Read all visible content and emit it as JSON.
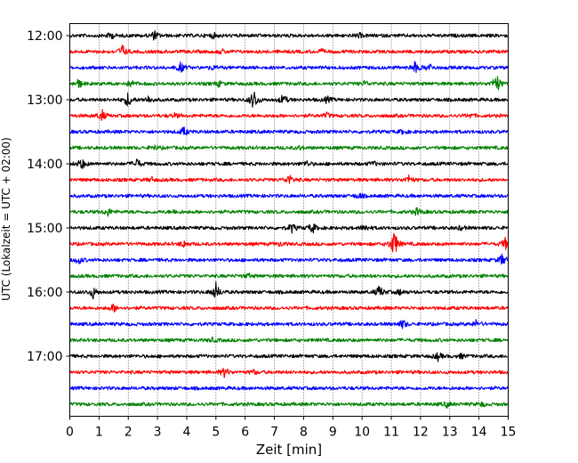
{
  "chart_data": {
    "type": "line",
    "title": "",
    "xlabel": "Zeit  [min]",
    "ylabel": "UTC (Lokalzeit = UTC + 02:00)",
    "xlim": [
      0,
      15
    ],
    "x_ticks": [
      "0",
      "1",
      "2",
      "3",
      "4",
      "5",
      "6",
      "7",
      "8",
      "9",
      "10",
      "11",
      "12",
      "13",
      "14",
      "15"
    ],
    "y_ticks": [
      "12:00",
      "13:00",
      "14:00",
      "15:00",
      "16:00",
      "17:00"
    ],
    "grid": "vertical dotted",
    "trace_interval_min": 15,
    "colors": [
      "#000000",
      "#ff0000",
      "#0000ff",
      "#008000"
    ],
    "traces": [
      {
        "start": "12:00",
        "color": "#000000",
        "events": [
          [
            1.4,
            0.5
          ],
          [
            2.9,
            0.7
          ],
          [
            4.9,
            0.4
          ],
          [
            9.9,
            0.3
          ]
        ]
      },
      {
        "start": "12:15",
        "color": "#ff0000",
        "events": [
          [
            1.8,
            1.0
          ],
          [
            5.2,
            0.3
          ],
          [
            8.6,
            0.3
          ]
        ]
      },
      {
        "start": "12:30",
        "color": "#0000ff",
        "events": [
          [
            3.8,
            0.8
          ],
          [
            4.9,
            0.3
          ],
          [
            11.8,
            0.9
          ],
          [
            12.3,
            0.6
          ]
        ]
      },
      {
        "start": "12:45",
        "color": "#008000",
        "events": [
          [
            0.3,
            0.7
          ],
          [
            2.1,
            0.5
          ],
          [
            5.1,
            0.4
          ],
          [
            10.1,
            0.4
          ],
          [
            14.6,
            1.6
          ]
        ]
      },
      {
        "start": "13:00",
        "color": "#000000",
        "events": [
          [
            2.0,
            1.2
          ],
          [
            2.7,
            0.6
          ],
          [
            6.3,
            1.7
          ],
          [
            7.3,
            0.8
          ],
          [
            8.8,
            0.5
          ]
        ]
      },
      {
        "start": "13:15",
        "color": "#ff0000",
        "events": [
          [
            1.1,
            0.9
          ],
          [
            3.6,
            0.3
          ],
          [
            8.8,
            0.4
          ],
          [
            13.7,
            0.3
          ]
        ]
      },
      {
        "start": "13:30",
        "color": "#0000ff",
        "events": [
          [
            3.9,
            0.7
          ],
          [
            11.4,
            0.3
          ]
        ]
      },
      {
        "start": "13:45",
        "color": "#008000",
        "events": [
          [
            2.9,
            0.3
          ],
          [
            7.9,
            0.3
          ]
        ]
      },
      {
        "start": "14:00",
        "color": "#000000",
        "events": [
          [
            0.4,
            0.9
          ],
          [
            2.3,
            0.8
          ],
          [
            8.1,
            0.4
          ],
          [
            10.4,
            0.3
          ]
        ]
      },
      {
        "start": "14:15",
        "color": "#ff0000",
        "events": [
          [
            2.8,
            0.3
          ],
          [
            7.5,
            0.8
          ],
          [
            11.6,
            0.6
          ]
        ]
      },
      {
        "start": "14:30",
        "color": "#0000ff",
        "events": [
          [
            9.9,
            0.4
          ]
        ]
      },
      {
        "start": "14:45",
        "color": "#008000",
        "events": [
          [
            1.3,
            0.6
          ],
          [
            3.6,
            0.3
          ],
          [
            11.9,
            0.6
          ]
        ]
      },
      {
        "start": "15:00",
        "color": "#000000",
        "events": [
          [
            7.6,
            0.7
          ],
          [
            8.3,
            0.8
          ],
          [
            10.1,
            0.5
          ],
          [
            13.4,
            0.3
          ]
        ]
      },
      {
        "start": "15:15",
        "color": "#ff0000",
        "events": [
          [
            3.9,
            0.5
          ],
          [
            7.2,
            0.3
          ],
          [
            11.1,
            2.2
          ],
          [
            14.9,
            0.9
          ]
        ]
      },
      {
        "start": "15:30",
        "color": "#0000ff",
        "events": [
          [
            0.3,
            0.6
          ],
          [
            14.8,
            0.9
          ]
        ]
      },
      {
        "start": "15:45",
        "color": "#008000",
        "events": [
          [
            6.1,
            0.3
          ]
        ]
      },
      {
        "start": "16:00",
        "color": "#000000",
        "events": [
          [
            0.8,
            0.9
          ],
          [
            5.0,
            1.4
          ],
          [
            10.6,
            1.0
          ],
          [
            11.3,
            0.4
          ]
        ]
      },
      {
        "start": "16:15",
        "color": "#ff0000",
        "events": [
          [
            1.5,
            0.6
          ]
        ]
      },
      {
        "start": "16:30",
        "color": "#0000ff",
        "events": [
          [
            11.4,
            0.7
          ],
          [
            13.9,
            0.5
          ]
        ]
      },
      {
        "start": "16:45",
        "color": "#008000",
        "events": [
          [
            4.9,
            0.3
          ]
        ]
      },
      {
        "start": "17:00",
        "color": "#000000",
        "events": [
          [
            12.6,
            0.6
          ],
          [
            13.4,
            0.3
          ]
        ]
      },
      {
        "start": "17:15",
        "color": "#ff0000",
        "events": [
          [
            5.3,
            0.8
          ],
          [
            6.3,
            0.3
          ]
        ]
      },
      {
        "start": "17:30",
        "color": "#0000ff",
        "events": []
      },
      {
        "start": "17:45",
        "color": "#008000",
        "events": [
          [
            12.9,
            0.4
          ],
          [
            14.1,
            0.3
          ]
        ]
      }
    ]
  }
}
